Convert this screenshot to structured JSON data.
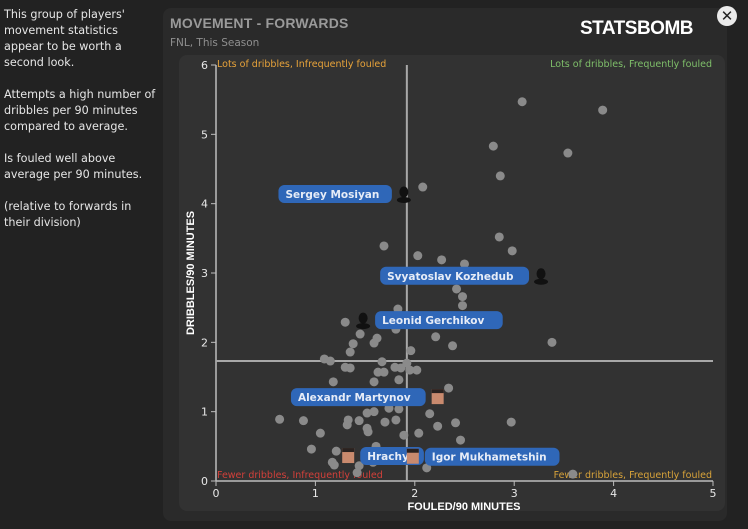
{
  "sidebar": {
    "paragraphs": [
      "This group of players' movement statistics appear to be worth a second look.",
      "Attempts a high number of dribbles per 90 minutes compared to average.",
      "Is fouled well above average per 90 minutes.",
      "(relative to forwards in their division)"
    ]
  },
  "header": {
    "title": "MOVEMENT - FORWARDS",
    "subtitle": "FNL, This Season",
    "logo": "STATSBOMB",
    "close_icon": "close-icon"
  },
  "colors": {
    "dot": "#8a8a8a",
    "label_bg": "#2f67b8",
    "quad_top_left": "#e8a33a",
    "quad_top_right": "#7fbf6a",
    "quad_bottom_left": "#d2403a",
    "quad_bottom_right": "#d8a33a"
  },
  "chart_data": {
    "type": "scatter",
    "xlabel": "FOULED/90 MINUTES",
    "ylabel": "DRIBBLES/90 MINUTES",
    "xlim": [
      0,
      5
    ],
    "ylim": [
      0,
      6
    ],
    "xticks": [
      0,
      1,
      2,
      3,
      4,
      5
    ],
    "yticks": [
      0,
      1,
      2,
      3,
      4,
      5,
      6
    ],
    "mean_x": 1.92,
    "mean_y": 1.73,
    "quadrants": {
      "top_left": "Lots of dribbles, Infrequently fouled",
      "top_right": "Lots of dribbles, Frequently fouled",
      "bottom_left": "Fewer dribbles, Infrequently fouled",
      "bottom_right": "Fewer dribbles, Frequently fouled"
    },
    "points": [
      [
        3.08,
        5.47
      ],
      [
        3.89,
        5.35
      ],
      [
        2.79,
        4.83
      ],
      [
        3.54,
        4.73
      ],
      [
        2.86,
        4.4
      ],
      [
        2.08,
        4.24
      ],
      [
        2.85,
        3.52
      ],
      [
        2.98,
        3.32
      ],
      [
        1.69,
        3.39
      ],
      [
        2.03,
        3.25
      ],
      [
        2.27,
        3.19
      ],
      [
        2.5,
        3.13
      ],
      [
        2.42,
        2.77
      ],
      [
        2.48,
        2.66
      ],
      [
        2.48,
        2.53
      ],
      [
        1.83,
        2.48
      ],
      [
        1.3,
        2.29
      ],
      [
        1.81,
        2.19
      ],
      [
        1.45,
        2.12
      ],
      [
        1.62,
        2.06
      ],
      [
        1.59,
        1.99
      ],
      [
        2.21,
        2.08
      ],
      [
        2.38,
        1.95
      ],
      [
        3.38,
        2.0
      ],
      [
        1.38,
        1.98
      ],
      [
        1.35,
        1.86
      ],
      [
        1.09,
        1.76
      ],
      [
        1.15,
        1.73
      ],
      [
        1.96,
        1.88
      ],
      [
        1.67,
        1.72
      ],
      [
        1.35,
        1.63
      ],
      [
        1.69,
        1.57
      ],
      [
        1.86,
        1.63
      ],
      [
        2.02,
        1.6
      ],
      [
        1.92,
        1.7
      ],
      [
        1.3,
        1.64
      ],
      [
        1.8,
        1.64
      ],
      [
        1.95,
        1.6
      ],
      [
        1.63,
        1.57
      ],
      [
        1.18,
        1.43
      ],
      [
        1.59,
        1.43
      ],
      [
        1.84,
        1.46
      ],
      [
        2.34,
        1.34
      ],
      [
        2.24,
        1.18
      ],
      [
        1.74,
        1.05
      ],
      [
        1.84,
        1.04
      ],
      [
        1.52,
        0.98
      ],
      [
        1.59,
        1.0
      ],
      [
        2.15,
        0.97
      ],
      [
        0.64,
        0.89
      ],
      [
        0.88,
        0.87
      ],
      [
        1.33,
        0.88
      ],
      [
        1.44,
        0.87
      ],
      [
        1.7,
        0.85
      ],
      [
        1.81,
        0.88
      ],
      [
        2.41,
        0.84
      ],
      [
        2.97,
        0.85
      ],
      [
        1.32,
        0.81
      ],
      [
        2.23,
        0.79
      ],
      [
        1.52,
        0.76
      ],
      [
        1.89,
        0.66
      ],
      [
        2.04,
        0.69
      ],
      [
        1.05,
        0.69
      ],
      [
        1.53,
        0.71
      ],
      [
        2.46,
        0.59
      ],
      [
        0.96,
        0.46
      ],
      [
        1.21,
        0.43
      ],
      [
        1.61,
        0.5
      ],
      [
        1.17,
        0.27
      ],
      [
        1.19,
        0.23
      ],
      [
        1.44,
        0.22
      ],
      [
        1.42,
        0.12
      ],
      [
        2.12,
        0.19
      ],
      [
        3.59,
        0.1
      ],
      [
        1.58,
        0.27
      ]
    ],
    "highlighted": [
      {
        "name": "Sergey Mosiyan",
        "x": 1.89,
        "y": 4.14,
        "side": "left",
        "photo": false
      },
      {
        "name": "Svyatoslav Kozhedub",
        "x": 3.27,
        "y": 2.96,
        "side": "left",
        "photo": false
      },
      {
        "name": "Leonid Gerchikov",
        "x": 1.48,
        "y": 2.32,
        "side": "right",
        "photo": false
      },
      {
        "name": "Alexandr Martynov",
        "x": 2.23,
        "y": 1.21,
        "side": "left",
        "photo": true
      },
      {
        "name": "Hrachya",
        "x": 1.33,
        "y": 0.36,
        "side": "right",
        "photo": true
      },
      {
        "name": "Igor Mukhametshin",
        "x": 1.98,
        "y": 0.35,
        "side": "right",
        "photo": true
      }
    ]
  }
}
